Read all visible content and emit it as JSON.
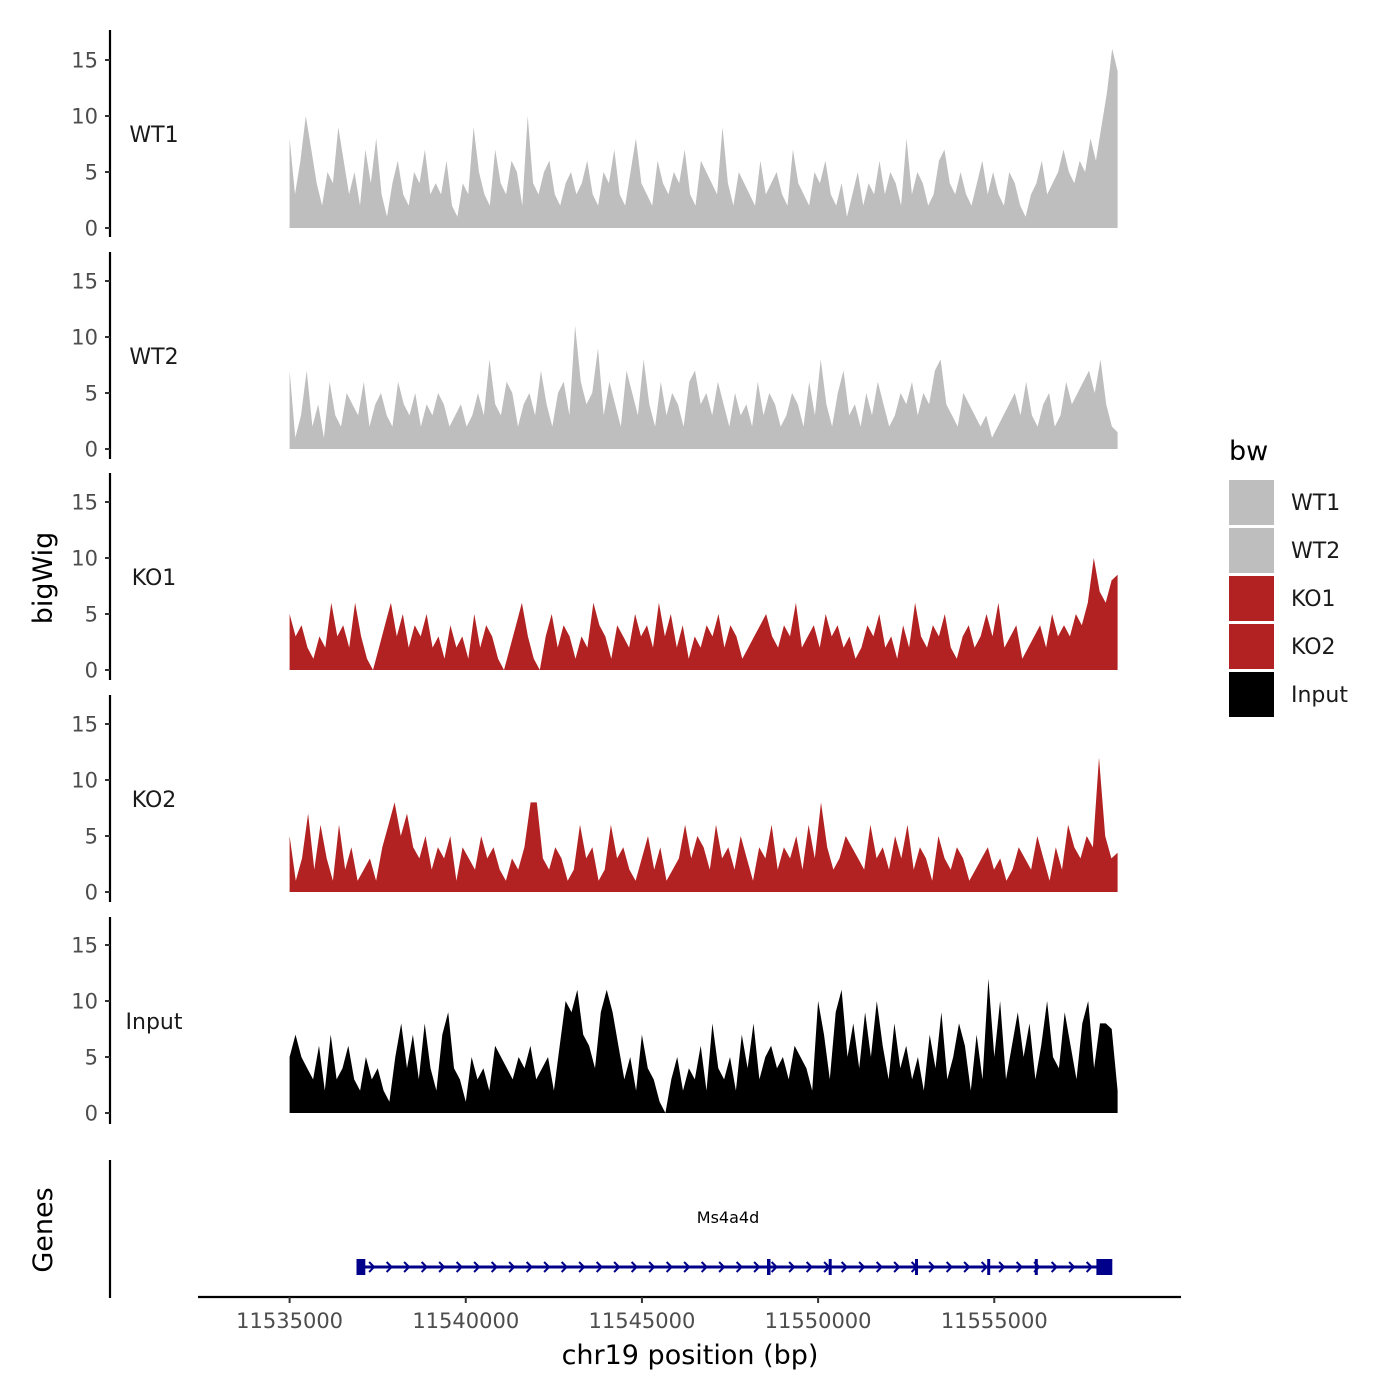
{
  "chart_data": {
    "type": "area",
    "title": "",
    "y_axis_title": "bigWig",
    "x_axis_title": "chr19 position (bp)",
    "genes_axis_title": "Genes",
    "y_ticks": [
      0,
      5,
      10,
      15
    ],
    "y_tick_labels": [
      "0",
      "5",
      "10",
      "15"
    ],
    "ylim": [
      0,
      17.5
    ],
    "x_ticks": [
      11535000,
      11540000,
      11545000,
      11550000,
      11555000
    ],
    "x_tick_labels": [
      "11535000",
      "11540000",
      "11545000",
      "11550000",
      "11555000"
    ],
    "xlim": [
      11532400,
      11560300
    ],
    "data_x_start": 11535000,
    "data_x_end": 11558500,
    "legend": {
      "title": "bw",
      "placement": "right",
      "entries": [
        {
          "label": "WT1",
          "color": "#bebebe"
        },
        {
          "label": "WT2",
          "color": "#bebebe"
        },
        {
          "label": "KO1",
          "color": "#b22222"
        },
        {
          "label": "KO2",
          "color": "#b22222"
        },
        {
          "label": "Input",
          "color": "#000000"
        }
      ]
    },
    "series": [
      {
        "name": "WT1",
        "color": "#bebebe",
        "values": [
          8,
          3,
          6,
          10,
          7,
          4,
          2,
          5,
          4,
          9,
          6,
          3,
          5,
          2,
          7,
          4,
          8,
          3,
          1,
          4,
          6,
          3,
          2,
          5,
          4,
          7,
          3,
          4,
          3,
          6,
          2,
          1,
          4,
          3,
          9,
          5,
          3,
          2,
          7,
          4,
          3,
          6,
          5,
          2,
          10,
          4,
          3,
          5,
          6,
          3,
          2,
          4,
          5,
          3,
          4,
          6,
          3,
          2,
          5,
          4,
          7,
          3,
          2,
          5,
          8,
          4,
          3,
          2,
          6,
          4,
          3,
          5,
          4,
          7,
          3,
          2,
          6,
          5,
          4,
          3,
          9,
          4,
          2,
          5,
          4,
          3,
          2,
          6,
          3,
          4,
          5,
          3,
          2,
          7,
          4,
          3,
          2,
          5,
          4,
          6,
          3,
          2,
          4,
          1,
          3,
          5,
          2,
          4,
          3,
          6,
          3,
          5,
          4,
          2,
          8,
          3,
          5,
          4,
          2,
          3,
          6,
          7,
          4,
          3,
          5,
          3,
          2,
          4,
          6,
          3,
          5,
          3,
          2,
          5,
          4,
          2,
          1,
          3,
          4,
          6,
          3,
          4,
          5,
          7,
          5,
          4,
          6,
          5,
          8,
          6,
          9,
          12,
          16,
          14
        ]
      },
      {
        "name": "WT2",
        "color": "#bebebe",
        "values": [
          7,
          1,
          3,
          7,
          2,
          4,
          1,
          6,
          3,
          2,
          5,
          4,
          3,
          6,
          2,
          4,
          5,
          3,
          2,
          6,
          4,
          3,
          5,
          2,
          4,
          3,
          5,
          4,
          2,
          3,
          4,
          2,
          3,
          5,
          3,
          8,
          4,
          3,
          6,
          5,
          2,
          4,
          5,
          3,
          7,
          4,
          2,
          5,
          6,
          3,
          11,
          6,
          4,
          5,
          9,
          3,
          6,
          4,
          2,
          7,
          5,
          3,
          8,
          4,
          2,
          6,
          3,
          5,
          4,
          2,
          6,
          7,
          4,
          5,
          3,
          6,
          4,
          2,
          5,
          3,
          4,
          2,
          6,
          3,
          5,
          4,
          2,
          3,
          5,
          4,
          2,
          6,
          3,
          8,
          4,
          2,
          5,
          7,
          3,
          4,
          2,
          5,
          3,
          6,
          4,
          2,
          3,
          5,
          4,
          6,
          3,
          5,
          4,
          7,
          8,
          4,
          3,
          2,
          5,
          4,
          3,
          2,
          3,
          1,
          2,
          3,
          4,
          5,
          3,
          6,
          3,
          2,
          4,
          5,
          2,
          3,
          6,
          4,
          5,
          6,
          7,
          5,
          8,
          4,
          2,
          1.5
        ]
      },
      {
        "name": "KO1",
        "color": "#b22222",
        "values": [
          5,
          3,
          4,
          2,
          1,
          3,
          2,
          6,
          3,
          4,
          2,
          6,
          3,
          1,
          0,
          2,
          4,
          6,
          3,
          5,
          2,
          4,
          3,
          5,
          2,
          3,
          1,
          4,
          2,
          3,
          1,
          5,
          2,
          4,
          3,
          1,
          0,
          2,
          4,
          6,
          3,
          1,
          0,
          3,
          5,
          2,
          4,
          3,
          1,
          3,
          2,
          6,
          4,
          3,
          1,
          4,
          3,
          2,
          5,
          3,
          4,
          2,
          6,
          3,
          5,
          2,
          4,
          1,
          3,
          2,
          4,
          3,
          5,
          2,
          4,
          3,
          1,
          2,
          3,
          4,
          5,
          3,
          2,
          4,
          3,
          6,
          2,
          3,
          4,
          2,
          5,
          3,
          4,
          2,
          3,
          1,
          2,
          4,
          3,
          5,
          2,
          3,
          1,
          4,
          2,
          6,
          3,
          2,
          4,
          3,
          5,
          2,
          1,
          3,
          4,
          2,
          3,
          5,
          3,
          6,
          2,
          3,
          4,
          1,
          2,
          3,
          4,
          2,
          5,
          3,
          4,
          3,
          5,
          4,
          6,
          10,
          7,
          6,
          8,
          8.5
        ]
      },
      {
        "name": "KO2",
        "color": "#b22222",
        "values": [
          5,
          1,
          3,
          7,
          2,
          6,
          3,
          1,
          6,
          2,
          4,
          1,
          2,
          3,
          1,
          4,
          6,
          8,
          5,
          7,
          4,
          3,
          5,
          2,
          4,
          3,
          5,
          1,
          4,
          3,
          2,
          5,
          3,
          4,
          2,
          1,
          3,
          2,
          4,
          8,
          8,
          3,
          2,
          4,
          3,
          1,
          2,
          6,
          3,
          4,
          1,
          2,
          6,
          3,
          4,
          2,
          1,
          3,
          5,
          2,
          4,
          1,
          2,
          3,
          6,
          3,
          5,
          4,
          2,
          6,
          3,
          4,
          2,
          5,
          3,
          1,
          4,
          3,
          6,
          2,
          4,
          3,
          5,
          2,
          6,
          3,
          8,
          4,
          2,
          3,
          5,
          4,
          3,
          2,
          6,
          3,
          4,
          2,
          5,
          3,
          6,
          2,
          4,
          3,
          1,
          5,
          3,
          2,
          4,
          3,
          1,
          2,
          3,
          4,
          2,
          3,
          1,
          2,
          4,
          3,
          2,
          5,
          3,
          1,
          4,
          2,
          6,
          4,
          3,
          5,
          4,
          12,
          5,
          3,
          3.5
        ]
      },
      {
        "name": "Input",
        "color": "#000000",
        "values": [
          5,
          7,
          5,
          4,
          3,
          6,
          2,
          7,
          3,
          4,
          6,
          3,
          2,
          5,
          3,
          4,
          2,
          1,
          5,
          8,
          4,
          7,
          3,
          8,
          4,
          2,
          7,
          9,
          4,
          3,
          1,
          5,
          3,
          4,
          2,
          6,
          5,
          4,
          3,
          5,
          4,
          6,
          3,
          4,
          5,
          2,
          6,
          10,
          9,
          11,
          7,
          6,
          4,
          9,
          11,
          9,
          6,
          3,
          5,
          2,
          7,
          4,
          3,
          1,
          0,
          3,
          5,
          2,
          4,
          3,
          6,
          2,
          8,
          4,
          3,
          5,
          2,
          7,
          4,
          8,
          3,
          5,
          6,
          4,
          5,
          3,
          6,
          5,
          4,
          2,
          10,
          7,
          3,
          9,
          11,
          5,
          8,
          4,
          9,
          5,
          10,
          6,
          3,
          8,
          4,
          6,
          3,
          5,
          2,
          7,
          4,
          9,
          3,
          5,
          8,
          6,
          2,
          7,
          3,
          12,
          5,
          10,
          3,
          6,
          9,
          5,
          8,
          3,
          6,
          10,
          5,
          4,
          9,
          6,
          3,
          8,
          10,
          4,
          8,
          8,
          7.5,
          2
        ]
      }
    ],
    "gene_track": {
      "gene_name": "Ms4a4d",
      "color": "#00008b",
      "strand": "+",
      "start": 11537000,
      "end": 11558300,
      "exons": [
        [
          11536900,
          11537150
        ],
        [
          11548550,
          11548650
        ],
        [
          11550300,
          11550380
        ],
        [
          11552750,
          11552800
        ],
        [
          11554800,
          11554880
        ],
        [
          11556150,
          11556220
        ],
        [
          11557900,
          11558350
        ]
      ]
    }
  }
}
